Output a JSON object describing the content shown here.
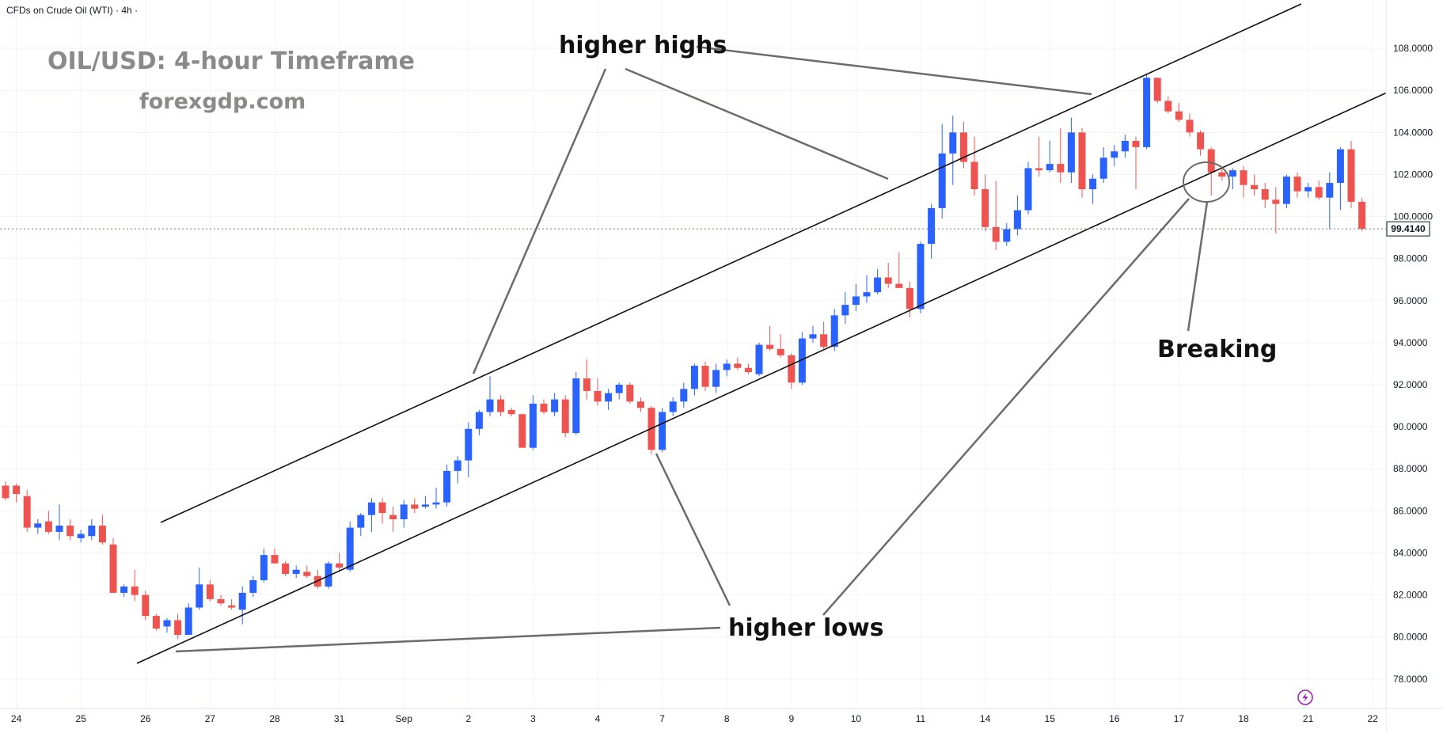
{
  "header": {
    "symbol": "CFDs on Crude Oil (WTI)",
    "interval": "4h",
    "sep": "·"
  },
  "watermark": {
    "title": "OIL/USD: 4-hour Timeframe",
    "site": "forexgdp.com"
  },
  "annotations": {
    "higher_highs": "higher highs",
    "higher_lows": "higher lows",
    "breaking": "Breaking"
  },
  "colors": {
    "up": "#2962ff",
    "down": "#ef5350",
    "grid": "#f0f3fa",
    "line": "#111111",
    "arrow": "#6b6b6b"
  },
  "icons": {
    "lightning": "lightning-icon"
  },
  "chart_data": {
    "type": "candlestick",
    "price_axis": {
      "ticks": [
        "108.0000",
        "106.0000",
        "104.0000",
        "102.0000",
        "100.0000",
        "98.0000",
        "96.0000",
        "94.0000",
        "92.0000",
        "90.0000",
        "88.0000",
        "86.0000",
        "84.0000",
        "82.0000",
        "80.0000",
        "78.0000"
      ],
      "tick_values": [
        108,
        106,
        104,
        102,
        100,
        98,
        96,
        94,
        92,
        90,
        88,
        86,
        84,
        82,
        80,
        78
      ],
      "ylim": [
        76.6,
        110.3
      ],
      "last_price_label": "99.4140",
      "last_price": 99.414
    },
    "time_axis": {
      "labels": [
        "24",
        "25",
        "26",
        "27",
        "28",
        "31",
        "Sep",
        "2",
        "3",
        "4",
        "7",
        "8",
        "9",
        "10",
        "11",
        "14",
        "15",
        "16",
        "17",
        "18",
        "21",
        "22"
      ],
      "label_bar_index": [
        1,
        7,
        13,
        19,
        25,
        31,
        37,
        43,
        49,
        55,
        61,
        67,
        73,
        79,
        85,
        91,
        97,
        103,
        109,
        115,
        121,
        127
      ]
    },
    "candles": [
      {
        "o": 87.2,
        "h": 87.4,
        "l": 86.5,
        "c": 86.6
      },
      {
        "o": 87.2,
        "h": 87.3,
        "l": 86.4,
        "c": 86.8
      },
      {
        "o": 86.7,
        "h": 87.0,
        "l": 85.0,
        "c": 85.2
      },
      {
        "o": 85.2,
        "h": 85.6,
        "l": 84.9,
        "c": 85.4
      },
      {
        "o": 85.5,
        "h": 86.0,
        "l": 84.9,
        "c": 85.0
      },
      {
        "o": 85.0,
        "h": 86.3,
        "l": 84.6,
        "c": 85.3
      },
      {
        "o": 85.3,
        "h": 85.6,
        "l": 84.6,
        "c": 84.8
      },
      {
        "o": 84.7,
        "h": 85.1,
        "l": 84.5,
        "c": 84.9
      },
      {
        "o": 84.8,
        "h": 85.6,
        "l": 84.6,
        "c": 85.3
      },
      {
        "o": 85.3,
        "h": 85.8,
        "l": 84.4,
        "c": 84.5
      },
      {
        "o": 84.4,
        "h": 84.7,
        "l": 82.1,
        "c": 82.1
      },
      {
        "o": 82.1,
        "h": 82.5,
        "l": 81.9,
        "c": 82.4
      },
      {
        "o": 82.4,
        "h": 83.2,
        "l": 81.7,
        "c": 82.0
      },
      {
        "o": 82.0,
        "h": 82.2,
        "l": 80.8,
        "c": 81.0
      },
      {
        "o": 81.0,
        "h": 81.1,
        "l": 80.3,
        "c": 80.4
      },
      {
        "o": 80.5,
        "h": 80.9,
        "l": 80.2,
        "c": 80.8
      },
      {
        "o": 80.8,
        "h": 81.1,
        "l": 79.9,
        "c": 80.1
      },
      {
        "o": 80.1,
        "h": 81.6,
        "l": 80.1,
        "c": 81.4
      },
      {
        "o": 81.4,
        "h": 83.3,
        "l": 81.3,
        "c": 82.5
      },
      {
        "o": 82.5,
        "h": 82.7,
        "l": 81.7,
        "c": 81.8
      },
      {
        "o": 81.8,
        "h": 82.0,
        "l": 81.5,
        "c": 81.6
      },
      {
        "o": 81.5,
        "h": 81.8,
        "l": 81.3,
        "c": 81.4
      },
      {
        "o": 81.3,
        "h": 82.4,
        "l": 80.6,
        "c": 82.1
      },
      {
        "o": 82.1,
        "h": 82.9,
        "l": 81.9,
        "c": 82.7
      },
      {
        "o": 82.7,
        "h": 84.2,
        "l": 82.6,
        "c": 83.9
      },
      {
        "o": 83.9,
        "h": 84.2,
        "l": 83.5,
        "c": 83.5
      },
      {
        "o": 83.5,
        "h": 83.6,
        "l": 82.9,
        "c": 83.0
      },
      {
        "o": 83.0,
        "h": 83.4,
        "l": 82.8,
        "c": 83.2
      },
      {
        "o": 83.1,
        "h": 83.4,
        "l": 82.8,
        "c": 82.9
      },
      {
        "o": 82.9,
        "h": 83.2,
        "l": 82.3,
        "c": 82.4
      },
      {
        "o": 82.4,
        "h": 83.6,
        "l": 82.3,
        "c": 83.5
      },
      {
        "o": 83.5,
        "h": 84.0,
        "l": 83.1,
        "c": 83.3
      },
      {
        "o": 83.2,
        "h": 85.5,
        "l": 83.1,
        "c": 85.2
      },
      {
        "o": 85.2,
        "h": 85.9,
        "l": 84.8,
        "c": 85.8
      },
      {
        "o": 85.8,
        "h": 86.6,
        "l": 85.0,
        "c": 86.4
      },
      {
        "o": 86.4,
        "h": 86.6,
        "l": 85.4,
        "c": 85.9
      },
      {
        "o": 85.8,
        "h": 86.2,
        "l": 85.0,
        "c": 85.6
      },
      {
        "o": 85.6,
        "h": 86.5,
        "l": 85.2,
        "c": 86.3
      },
      {
        "o": 86.3,
        "h": 86.6,
        "l": 85.9,
        "c": 86.1
      },
      {
        "o": 86.2,
        "h": 86.7,
        "l": 86.1,
        "c": 86.3
      },
      {
        "o": 86.3,
        "h": 87.1,
        "l": 86.1,
        "c": 86.4
      },
      {
        "o": 86.4,
        "h": 88.2,
        "l": 86.2,
        "c": 87.9
      },
      {
        "o": 87.9,
        "h": 88.6,
        "l": 87.3,
        "c": 88.4
      },
      {
        "o": 88.4,
        "h": 90.2,
        "l": 87.6,
        "c": 89.9
      },
      {
        "o": 89.9,
        "h": 90.8,
        "l": 89.6,
        "c": 90.7
      },
      {
        "o": 90.7,
        "h": 92.4,
        "l": 90.5,
        "c": 91.3
      },
      {
        "o": 91.3,
        "h": 91.5,
        "l": 90.5,
        "c": 90.7
      },
      {
        "o": 90.8,
        "h": 90.9,
        "l": 90.5,
        "c": 90.6
      },
      {
        "o": 90.6,
        "h": 90.6,
        "l": 89.0,
        "c": 89.0
      },
      {
        "o": 89.0,
        "h": 91.5,
        "l": 88.9,
        "c": 91.1
      },
      {
        "o": 91.1,
        "h": 91.3,
        "l": 90.6,
        "c": 90.7
      },
      {
        "o": 90.7,
        "h": 91.6,
        "l": 90.5,
        "c": 91.3
      },
      {
        "o": 91.3,
        "h": 91.5,
        "l": 89.5,
        "c": 89.7
      },
      {
        "o": 89.7,
        "h": 92.6,
        "l": 89.6,
        "c": 92.3
      },
      {
        "o": 92.3,
        "h": 93.2,
        "l": 91.3,
        "c": 91.7
      },
      {
        "o": 91.7,
        "h": 92.3,
        "l": 91.0,
        "c": 91.2
      },
      {
        "o": 91.2,
        "h": 91.8,
        "l": 90.8,
        "c": 91.6
      },
      {
        "o": 91.6,
        "h": 92.1,
        "l": 91.3,
        "c": 92.0
      },
      {
        "o": 92.0,
        "h": 92.1,
        "l": 91.1,
        "c": 91.2
      },
      {
        "o": 91.2,
        "h": 91.4,
        "l": 90.7,
        "c": 90.9
      },
      {
        "o": 90.9,
        "h": 91.0,
        "l": 88.7,
        "c": 88.9
      },
      {
        "o": 88.9,
        "h": 90.9,
        "l": 88.8,
        "c": 90.7
      },
      {
        "o": 90.7,
        "h": 91.4,
        "l": 90.5,
        "c": 91.2
      },
      {
        "o": 91.2,
        "h": 92.1,
        "l": 90.9,
        "c": 91.8
      },
      {
        "o": 91.8,
        "h": 93.0,
        "l": 91.5,
        "c": 92.9
      },
      {
        "o": 92.9,
        "h": 93.1,
        "l": 91.7,
        "c": 91.9
      },
      {
        "o": 91.9,
        "h": 93.0,
        "l": 91.6,
        "c": 92.7
      },
      {
        "o": 92.7,
        "h": 93.2,
        "l": 92.4,
        "c": 93.0
      },
      {
        "o": 93.0,
        "h": 93.3,
        "l": 92.7,
        "c": 92.8
      },
      {
        "o": 92.8,
        "h": 93.0,
        "l": 92.5,
        "c": 92.6
      },
      {
        "o": 92.5,
        "h": 94.0,
        "l": 92.4,
        "c": 93.9
      },
      {
        "o": 93.9,
        "h": 94.8,
        "l": 93.6,
        "c": 93.7
      },
      {
        "o": 93.7,
        "h": 94.4,
        "l": 93.3,
        "c": 93.4
      },
      {
        "o": 93.4,
        "h": 93.5,
        "l": 91.8,
        "c": 92.1
      },
      {
        "o": 92.1,
        "h": 94.5,
        "l": 92.0,
        "c": 94.2
      },
      {
        "o": 94.2,
        "h": 94.8,
        "l": 94.0,
        "c": 94.4
      },
      {
        "o": 94.4,
        "h": 95.0,
        "l": 93.7,
        "c": 93.8
      },
      {
        "o": 93.8,
        "h": 95.6,
        "l": 93.6,
        "c": 95.3
      },
      {
        "o": 95.3,
        "h": 96.4,
        "l": 94.9,
        "c": 95.8
      },
      {
        "o": 95.8,
        "h": 96.8,
        "l": 95.5,
        "c": 96.2
      },
      {
        "o": 96.2,
        "h": 97.2,
        "l": 95.9,
        "c": 96.4
      },
      {
        "o": 96.4,
        "h": 97.5,
        "l": 96.3,
        "c": 97.1
      },
      {
        "o": 97.1,
        "h": 97.8,
        "l": 96.6,
        "c": 96.8
      },
      {
        "o": 96.8,
        "h": 98.3,
        "l": 96.6,
        "c": 96.6
      },
      {
        "o": 96.6,
        "h": 96.9,
        "l": 95.2,
        "c": 95.6
      },
      {
        "o": 95.6,
        "h": 98.8,
        "l": 95.4,
        "c": 98.7
      },
      {
        "o": 98.7,
        "h": 100.6,
        "l": 98.0,
        "c": 100.4
      },
      {
        "o": 100.4,
        "h": 104.4,
        "l": 99.9,
        "c": 103.0
      },
      {
        "o": 103.0,
        "h": 104.8,
        "l": 101.5,
        "c": 104.0
      },
      {
        "o": 104.0,
        "h": 104.5,
        "l": 102.3,
        "c": 102.6
      },
      {
        "o": 102.6,
        "h": 103.8,
        "l": 101.0,
        "c": 101.3
      },
      {
        "o": 101.3,
        "h": 102.0,
        "l": 99.3,
        "c": 99.5
      },
      {
        "o": 99.5,
        "h": 101.7,
        "l": 98.4,
        "c": 98.8
      },
      {
        "o": 98.8,
        "h": 99.7,
        "l": 98.6,
        "c": 99.4
      },
      {
        "o": 99.4,
        "h": 101.0,
        "l": 99.1,
        "c": 100.3
      },
      {
        "o": 100.3,
        "h": 102.6,
        "l": 100.1,
        "c": 102.3
      },
      {
        "o": 102.3,
        "h": 103.8,
        "l": 101.9,
        "c": 102.2
      },
      {
        "o": 102.2,
        "h": 103.6,
        "l": 102.1,
        "c": 102.5
      },
      {
        "o": 102.5,
        "h": 104.2,
        "l": 101.6,
        "c": 102.1
      },
      {
        "o": 102.1,
        "h": 104.7,
        "l": 101.6,
        "c": 104.0
      },
      {
        "o": 104.0,
        "h": 104.2,
        "l": 100.9,
        "c": 101.3
      },
      {
        "o": 101.3,
        "h": 102.0,
        "l": 100.6,
        "c": 101.8
      },
      {
        "o": 101.8,
        "h": 103.3,
        "l": 101.6,
        "c": 102.8
      },
      {
        "o": 102.8,
        "h": 103.4,
        "l": 102.4,
        "c": 103.1
      },
      {
        "o": 103.1,
        "h": 103.9,
        "l": 102.8,
        "c": 103.6
      },
      {
        "o": 103.6,
        "h": 103.8,
        "l": 101.3,
        "c": 103.3
      },
      {
        "o": 103.3,
        "h": 106.8,
        "l": 103.2,
        "c": 106.6
      },
      {
        "o": 106.6,
        "h": 106.6,
        "l": 105.4,
        "c": 105.5
      },
      {
        "o": 105.5,
        "h": 105.7,
        "l": 104.9,
        "c": 105.0
      },
      {
        "o": 105.0,
        "h": 105.4,
        "l": 104.5,
        "c": 104.6
      },
      {
        "o": 104.6,
        "h": 104.9,
        "l": 103.8,
        "c": 104.0
      },
      {
        "o": 104.0,
        "h": 104.1,
        "l": 102.9,
        "c": 103.2
      },
      {
        "o": 103.2,
        "h": 103.3,
        "l": 101.0,
        "c": 102.1
      },
      {
        "o": 102.1,
        "h": 102.4,
        "l": 101.7,
        "c": 101.9
      },
      {
        "o": 101.9,
        "h": 102.3,
        "l": 101.3,
        "c": 102.2
      },
      {
        "o": 102.2,
        "h": 102.4,
        "l": 100.9,
        "c": 101.5
      },
      {
        "o": 101.5,
        "h": 102.0,
        "l": 101.0,
        "c": 101.3
      },
      {
        "o": 101.3,
        "h": 101.6,
        "l": 100.4,
        "c": 100.8
      },
      {
        "o": 100.8,
        "h": 101.4,
        "l": 99.2,
        "c": 100.6
      },
      {
        "o": 100.6,
        "h": 102.0,
        "l": 100.4,
        "c": 101.9
      },
      {
        "o": 101.9,
        "h": 102.1,
        "l": 100.9,
        "c": 101.2
      },
      {
        "o": 101.2,
        "h": 101.6,
        "l": 100.9,
        "c": 101.4
      },
      {
        "o": 101.4,
        "h": 101.7,
        "l": 100.8,
        "c": 100.9
      },
      {
        "o": 100.9,
        "h": 102.1,
        "l": 99.4,
        "c": 101.6
      },
      {
        "o": 101.6,
        "h": 103.3,
        "l": 100.3,
        "c": 103.2
      },
      {
        "o": 103.2,
        "h": 103.6,
        "l": 100.4,
        "c": 100.7
      },
      {
        "o": 100.7,
        "h": 100.9,
        "l": 99.3,
        "c": 99.414
      }
    ]
  }
}
